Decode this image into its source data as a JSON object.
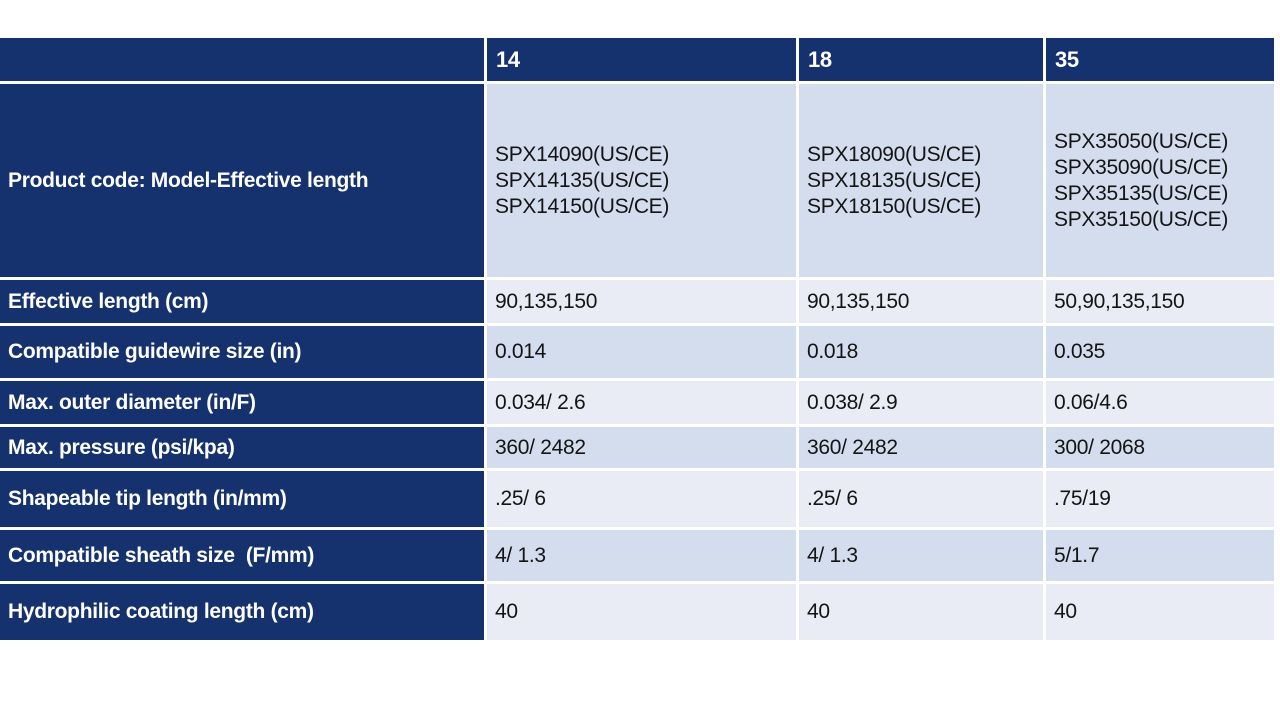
{
  "colors": {
    "table_header_bg": "#15316e",
    "row_label_bg": "#15316e",
    "header_text": "#ffffff",
    "cell_text": "#141414",
    "band_dark": "#d3ddee",
    "band_light": "#e9ecf5",
    "gridline": "#ffffff"
  },
  "table": {
    "column_headers": [
      "",
      "14",
      "18",
      "35"
    ],
    "rows": [
      {
        "label": "Product code: Model-Effective length",
        "cells": [
          [
            "SPX14090(US/CE)",
            "SPX14135(US/CE)",
            "SPX14150(US/CE)"
          ],
          [
            "SPX18090(US/CE)",
            "SPX18135(US/CE)",
            "SPX18150(US/CE)"
          ],
          [
            "SPX35050(US/CE)",
            "SPX35090(US/CE)",
            "SPX35135(US/CE)",
            "SPX35150(US/CE)"
          ]
        ]
      },
      {
        "label": "Effective length (cm)",
        "cells": [
          [
            "90,135,150"
          ],
          [
            "90,135,150"
          ],
          [
            "50,90,135,150"
          ]
        ]
      },
      {
        "label": "Compatible guidewire size (in)",
        "cells": [
          [
            "0.014"
          ],
          [
            "0.018"
          ],
          [
            "0.035"
          ]
        ]
      },
      {
        "label": "Max. outer diameter (in/F)",
        "cells": [
          [
            "0.034/ 2.6"
          ],
          [
            "0.038/ 2.9"
          ],
          [
            "0.06/4.6"
          ]
        ]
      },
      {
        "label": "Max. pressure (psi/kpa)",
        "cells": [
          [
            "360/ 2482"
          ],
          [
            "360/ 2482"
          ],
          [
            "300/ 2068"
          ]
        ]
      },
      {
        "label": "Shapeable tip length (in/mm)",
        "cells": [
          [
            ".25/ 6"
          ],
          [
            ".25/ 6"
          ],
          [
            ".75/19"
          ]
        ]
      },
      {
        "label": "Compatible sheath size  (F/mm)",
        "cells": [
          [
            "4/ 1.3"
          ],
          [
            "4/ 1.3"
          ],
          [
            "5/1.7"
          ]
        ]
      },
      {
        "label": "Hydrophilic coating length (cm)",
        "cells": [
          [
            "40"
          ],
          [
            "40"
          ],
          [
            "40"
          ]
        ]
      }
    ]
  }
}
